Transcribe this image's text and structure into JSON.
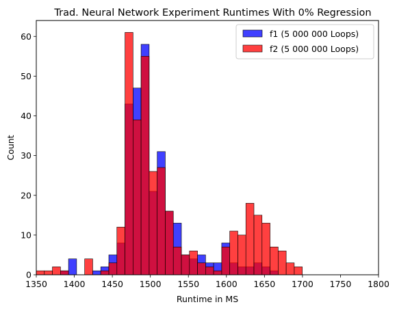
{
  "chart_data": {
    "type": "histogram",
    "title": "Trad. Neural Network Experiment Runtimes With 0% Regression",
    "xlabel": "Runtime in MS",
    "ylabel": "Count",
    "xlim": [
      1350,
      1800
    ],
    "ylim": [
      0,
      64
    ],
    "bin_start": 1350,
    "bin_width": 10.6,
    "x_ticks": [
      1350,
      1400,
      1450,
      1500,
      1550,
      1600,
      1650,
      1700,
      1750,
      1800
    ],
    "y_ticks": [
      0,
      10,
      20,
      30,
      40,
      50,
      60
    ],
    "grid": false,
    "legend_position": "top-right",
    "series": [
      {
        "name": "f1 (5 000 000 Loops)",
        "color": "#0000ff",
        "values": [
          0,
          0,
          0,
          1,
          4,
          0,
          0,
          1,
          2,
          5,
          8,
          43,
          47,
          58,
          21,
          31,
          16,
          13,
          5,
          4,
          5,
          3,
          3,
          8,
          3,
          2,
          2,
          3,
          2,
          1,
          0,
          0
        ]
      },
      {
        "name": "f2 (5 000 000 Loops)",
        "color": "#ff0000",
        "values": [
          1,
          1,
          2,
          1,
          0,
          0,
          4,
          0,
          1,
          3,
          12,
          61,
          39,
          55,
          26,
          27,
          16,
          7,
          5,
          6,
          3,
          2,
          1,
          7,
          11,
          10,
          18,
          15,
          13,
          7,
          6,
          3,
          2
        ]
      }
    ]
  }
}
